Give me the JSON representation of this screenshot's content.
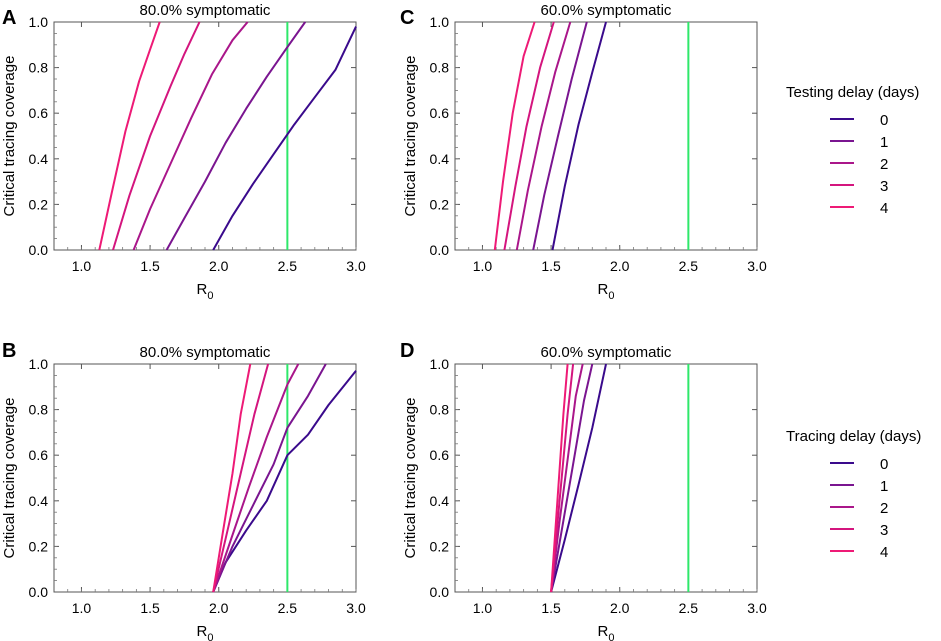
{
  "chart_data": [
    {
      "panel": "A",
      "type": "line",
      "title": "80.0% symptomatic",
      "xlabel": "R",
      "xlabel_sub": "0",
      "ylabel": "Critical tracing coverage",
      "xlim": [
        0.8,
        3.0
      ],
      "ylim": [
        0.0,
        1.0
      ],
      "xticks": [
        "1.0",
        "1.5",
        "2.0",
        "2.5",
        "3.0"
      ],
      "yticks": [
        "0.0",
        "0.2",
        "0.4",
        "0.6",
        "0.8",
        "1.0"
      ],
      "reference_line": {
        "x": 2.5,
        "color": "#2ee86a"
      },
      "series": [
        {
          "name": "0",
          "color": "#3a0a8c",
          "x": [
            1.96,
            2.1,
            2.25,
            2.4,
            2.55,
            2.7,
            2.85,
            3.0
          ],
          "y": [
            0.0,
            0.15,
            0.29,
            0.42,
            0.55,
            0.67,
            0.79,
            0.98
          ]
        },
        {
          "name": "1",
          "color": "#7a1590",
          "x": [
            1.62,
            1.75,
            1.9,
            2.05,
            2.2,
            2.35,
            2.5,
            2.63
          ],
          "y": [
            0.0,
            0.14,
            0.3,
            0.47,
            0.62,
            0.76,
            0.89,
            1.0
          ]
        },
        {
          "name": "2",
          "color": "#aa168a",
          "x": [
            1.38,
            1.5,
            1.65,
            1.8,
            1.95,
            2.1,
            2.21
          ],
          "y": [
            0.0,
            0.18,
            0.38,
            0.58,
            0.77,
            0.92,
            1.0
          ]
        },
        {
          "name": "3",
          "color": "#d4157e",
          "x": [
            1.23,
            1.35,
            1.5,
            1.65,
            1.75,
            1.86
          ],
          "y": [
            0.0,
            0.24,
            0.5,
            0.72,
            0.86,
            1.0
          ]
        },
        {
          "name": "4",
          "color": "#ee1a76",
          "x": [
            1.13,
            1.22,
            1.32,
            1.42,
            1.5,
            1.57
          ],
          "y": [
            0.0,
            0.25,
            0.52,
            0.74,
            0.88,
            1.0
          ]
        }
      ]
    },
    {
      "panel": "C",
      "type": "line",
      "title": "60.0% symptomatic",
      "xlabel": "R",
      "xlabel_sub": "0",
      "ylabel": "Critical tracing coverage",
      "xlim": [
        0.8,
        3.0
      ],
      "ylim": [
        0.0,
        1.0
      ],
      "xticks": [
        "1.0",
        "1.5",
        "2.0",
        "2.5",
        "3.0"
      ],
      "yticks": [
        "0.0",
        "0.2",
        "0.4",
        "0.6",
        "0.8",
        "1.0"
      ],
      "reference_line": {
        "x": 2.5,
        "color": "#2ee86a"
      },
      "series": [
        {
          "name": "0",
          "color": "#3a0a8c",
          "x": [
            1.51,
            1.6,
            1.7,
            1.8,
            1.9
          ],
          "y": [
            0.0,
            0.28,
            0.55,
            0.78,
            1.0
          ]
        },
        {
          "name": "1",
          "color": "#7a1590",
          "x": [
            1.37,
            1.45,
            1.55,
            1.65,
            1.76
          ],
          "y": [
            0.0,
            0.24,
            0.5,
            0.75,
            1.0
          ]
        },
        {
          "name": "2",
          "color": "#aa168a",
          "x": [
            1.25,
            1.33,
            1.43,
            1.53,
            1.64
          ],
          "y": [
            0.0,
            0.26,
            0.54,
            0.78,
            1.0
          ]
        },
        {
          "name": "3",
          "color": "#d4157e",
          "x": [
            1.16,
            1.24,
            1.32,
            1.42,
            1.52
          ],
          "y": [
            0.0,
            0.28,
            0.54,
            0.8,
            1.0
          ]
        },
        {
          "name": "4",
          "color": "#ee1a76",
          "x": [
            1.09,
            1.15,
            1.22,
            1.3,
            1.38
          ],
          "y": [
            0.0,
            0.3,
            0.6,
            0.85,
            1.0
          ]
        }
      ]
    },
    {
      "panel": "B",
      "type": "line",
      "title": "80.0% symptomatic",
      "xlabel": "R",
      "xlabel_sub": "0",
      "ylabel": "Critical tracing coverage",
      "xlim": [
        0.8,
        3.0
      ],
      "ylim": [
        0.0,
        1.0
      ],
      "xticks": [
        "1.0",
        "1.5",
        "2.0",
        "2.5",
        "3.0"
      ],
      "yticks": [
        "0.0",
        "0.2",
        "0.4",
        "0.6",
        "0.8",
        "1.0"
      ],
      "reference_line": {
        "x": 2.5,
        "color": "#2ee86a"
      },
      "series": [
        {
          "name": "0",
          "color": "#3a0a8c",
          "x": [
            1.96,
            2.05,
            2.2,
            2.35,
            2.5,
            2.65,
            2.8,
            3.0
          ],
          "y": [
            0.0,
            0.13,
            0.27,
            0.4,
            0.6,
            0.69,
            0.82,
            0.97
          ]
        },
        {
          "name": "1",
          "color": "#7a1590",
          "x": [
            1.96,
            2.1,
            2.25,
            2.4,
            2.5,
            2.65,
            2.78
          ],
          "y": [
            0.0,
            0.2,
            0.38,
            0.56,
            0.72,
            0.86,
            1.0
          ]
        },
        {
          "name": "2",
          "color": "#aa168a",
          "x": [
            1.96,
            2.1,
            2.22,
            2.35,
            2.5,
            2.58
          ],
          "y": [
            0.0,
            0.25,
            0.46,
            0.68,
            0.91,
            1.0
          ]
        },
        {
          "name": "3",
          "color": "#d4157e",
          "x": [
            1.96,
            2.06,
            2.16,
            2.26,
            2.36
          ],
          "y": [
            0.0,
            0.26,
            0.52,
            0.78,
            1.0
          ]
        },
        {
          "name": "4",
          "color": "#ee1a76",
          "x": [
            1.96,
            2.03,
            2.1,
            2.16,
            2.23
          ],
          "y": [
            0.0,
            0.26,
            0.52,
            0.78,
            1.0
          ]
        }
      ]
    },
    {
      "panel": "D",
      "type": "line",
      "title": "60.0% symptomatic",
      "xlabel": "R",
      "xlabel_sub": "0",
      "ylabel": "Critical tracing coverage",
      "xlim": [
        0.8,
        3.0
      ],
      "ylim": [
        0.0,
        1.0
      ],
      "xticks": [
        "1.0",
        "1.5",
        "2.0",
        "2.5",
        "3.0"
      ],
      "yticks": [
        "0.0",
        "0.2",
        "0.4",
        "0.6",
        "0.8",
        "1.0"
      ],
      "reference_line": {
        "x": 2.5,
        "color": "#2ee86a"
      },
      "series": [
        {
          "name": "0",
          "color": "#3a0a8c",
          "x": [
            1.5,
            1.6,
            1.7,
            1.8,
            1.9
          ],
          "y": [
            0.0,
            0.23,
            0.47,
            0.72,
            1.0
          ]
        },
        {
          "name": "1",
          "color": "#7a1590",
          "x": [
            1.5,
            1.58,
            1.66,
            1.74,
            1.8
          ],
          "y": [
            0.0,
            0.28,
            0.56,
            0.84,
            1.0
          ]
        },
        {
          "name": "2",
          "color": "#aa168a",
          "x": [
            1.5,
            1.56,
            1.62,
            1.68,
            1.73
          ],
          "y": [
            0.0,
            0.3,
            0.58,
            0.86,
            1.0
          ]
        },
        {
          "name": "3",
          "color": "#d4157e",
          "x": [
            1.5,
            1.54,
            1.58,
            1.62,
            1.66
          ],
          "y": [
            0.0,
            0.26,
            0.52,
            0.78,
            1.0
          ]
        },
        {
          "name": "4",
          "color": "#ee1a76",
          "x": [
            1.5,
            1.53,
            1.56,
            1.59,
            1.62
          ],
          "y": [
            0.0,
            0.26,
            0.52,
            0.78,
            1.0
          ]
        }
      ]
    }
  ],
  "legends": {
    "testing": {
      "title": "Testing delay (days)",
      "entries": [
        {
          "label": "0",
          "color": "#3a0a8c"
        },
        {
          "label": "1",
          "color": "#7a1590"
        },
        {
          "label": "2",
          "color": "#aa168a"
        },
        {
          "label": "3",
          "color": "#d4157e"
        },
        {
          "label": "4",
          "color": "#ee1a76"
        }
      ]
    },
    "tracing": {
      "title": "Tracing delay (days)",
      "entries": [
        {
          "label": "0",
          "color": "#3a0a8c"
        },
        {
          "label": "1",
          "color": "#7a1590"
        },
        {
          "label": "2",
          "color": "#aa168a"
        },
        {
          "label": "3",
          "color": "#d4157e"
        },
        {
          "label": "4",
          "color": "#ee1a76"
        }
      ]
    }
  }
}
